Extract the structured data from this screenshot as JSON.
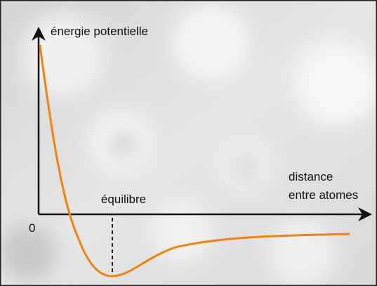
{
  "axes": {
    "y_label": "énergie potentielle",
    "x_label": [
      "distance",
      "entre atomes"
    ],
    "origin": "0"
  },
  "annotations": {
    "equilibrium": "équilibre"
  }
}
